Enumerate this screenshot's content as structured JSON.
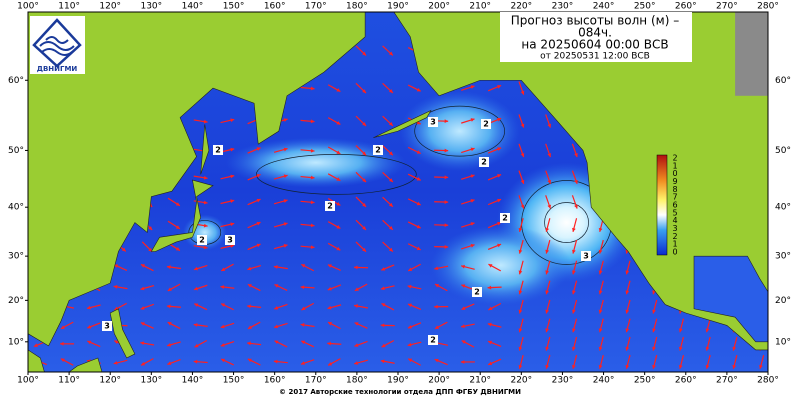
{
  "header": {
    "title_lines": [
      "Прогноз высоты волн (м) –",
      "084ч.",
      "на 20250604 00:00 ВСВ",
      "от 20250531 12:00 ВСВ"
    ],
    "logo": "ДВНИГМИ"
  },
  "map": {
    "lon_range": [
      100,
      280
    ],
    "lat_range": [
      2.5,
      67.5
    ],
    "lon_ticks": [
      {
        "value": 100,
        "label": "100°"
      },
      {
        "value": 110,
        "label": "110°"
      },
      {
        "value": 120,
        "label": "120°"
      },
      {
        "value": 130,
        "label": "130°"
      },
      {
        "value": 140,
        "label": "140°"
      },
      {
        "value": 150,
        "label": "150°"
      },
      {
        "value": 160,
        "label": "160°"
      },
      {
        "value": 170,
        "label": "170°"
      },
      {
        "value": 180,
        "label": "180°"
      },
      {
        "value": 190,
        "label": "190°"
      },
      {
        "value": 200,
        "label": "200°"
      },
      {
        "value": 210,
        "label": "210°"
      },
      {
        "value": 220,
        "label": "220°"
      },
      {
        "value": 230,
        "label": "230°"
      },
      {
        "value": 240,
        "label": "240°"
      },
      {
        "value": 250,
        "label": "250°"
      },
      {
        "value": 260,
        "label": "260°"
      },
      {
        "value": 270,
        "label": "270°"
      },
      {
        "value": 280,
        "label": "280°"
      }
    ],
    "lat_ticks": [
      {
        "value": 10,
        "label": "10°"
      },
      {
        "value": 20,
        "label": "20°"
      },
      {
        "value": 30,
        "label": "30°"
      },
      {
        "value": 40,
        "label": "40°"
      },
      {
        "value": 50,
        "label": "50°"
      },
      {
        "value": 60,
        "label": "60°"
      }
    ],
    "colorbar_labels": [
      "2",
      "1",
      "0",
      "9",
      "8",
      "7",
      "6",
      "5",
      "4",
      "3",
      "2",
      "1",
      "0"
    ],
    "contour_labels": [
      "2",
      "3",
      "2",
      "2",
      "3",
      "2",
      "2",
      "3",
      "3",
      "2",
      "3",
      "2",
      "2",
      "2"
    ]
  },
  "footer": {
    "copyright": "© 2017 Авторские технологии отдела ДПП ФГБУ ДВНИГМИ"
  }
}
